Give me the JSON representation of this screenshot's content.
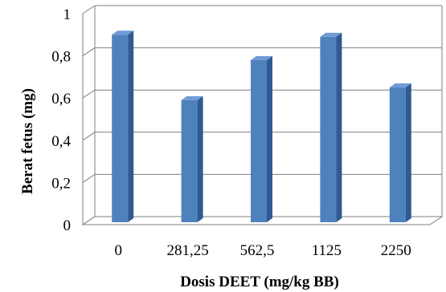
{
  "chart_data": {
    "type": "bar",
    "bar_style": "3d-column",
    "categories": [
      "0",
      "281,25",
      "562,5",
      "1125",
      "2250"
    ],
    "values": [
      0.9,
      0.59,
      0.78,
      0.89,
      0.65
    ],
    "title": "",
    "xlabel": "Dosis DEET (mg/kg BB)",
    "ylabel": "Berat fetus (mg)",
    "ylim": [
      0,
      1
    ],
    "yticks": [
      0,
      0.2,
      0.4,
      0.6,
      0.8,
      1
    ],
    "ytick_labels": [
      "0",
      "0,2",
      "0,4",
      "0,6",
      "0,8",
      "1"
    ],
    "grid": true,
    "legend": "none",
    "colors": {
      "bar_front": "#4f81bd",
      "bar_top": "#6f9bd6",
      "bar_side": "#2f5a92",
      "grid": "#7f7f7f"
    }
  }
}
